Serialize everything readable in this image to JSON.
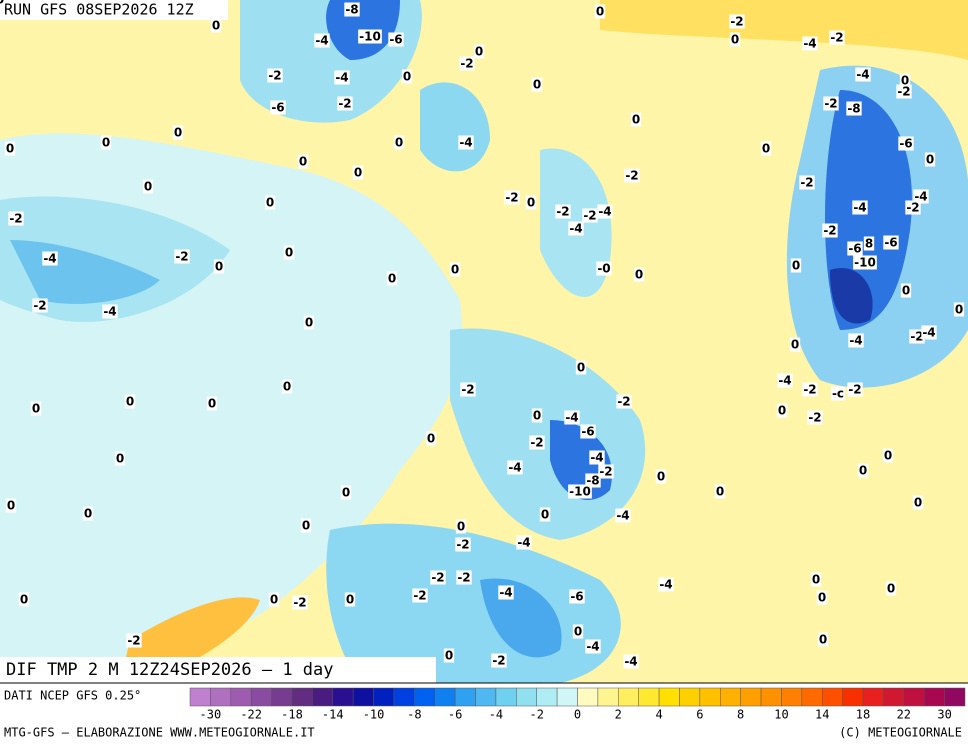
{
  "header": {
    "run": "RUN GFS 08SEP2026 12Z",
    "field": "DIF TMP 2 M 12Z24SEP2026 — 1 day",
    "source": "DATI NCEP GFS 0.25°",
    "footer_left": "MTG-GFS — ELABORAZIONE WWW.METEOGIORNALE.IT",
    "footer_right": "(C) METEOGIORNALE"
  },
  "contour_labels": [
    "-8",
    "0",
    "-2",
    "0",
    "-4",
    "-10",
    "-6",
    "0",
    "-2",
    "-4",
    "-2",
    "0",
    "-4",
    "0",
    "-2",
    "0",
    "-4",
    "0",
    "-2",
    "-6",
    "-2",
    "-2",
    "-8",
    "0",
    "0",
    "0",
    "-4",
    "0",
    "-6",
    "0",
    "0",
    "0",
    "0",
    "0",
    "0",
    "-2",
    "-2",
    "0",
    "-2",
    "0",
    "-2",
    "-2",
    "-4",
    "-4",
    "-2",
    "-4",
    "-2",
    "-4",
    "-2",
    "-6",
    "-6",
    "8",
    "-4",
    "-2",
    "0",
    "0",
    "0",
    "-0",
    "0",
    "0",
    "-10",
    "0",
    "0",
    "-2",
    "-4",
    "0",
    "0",
    "-4",
    "-2",
    "-4",
    "0",
    "0",
    "-2",
    "-4",
    "-2",
    "-c",
    "-2",
    "0",
    "0",
    "0",
    "0",
    "-2",
    "0",
    "-2",
    "0",
    "-4",
    "-6",
    "0",
    "-2",
    "-4",
    "-2",
    "-4",
    "-8",
    "-10",
    "0",
    "0",
    "0",
    "0",
    "0",
    "0",
    "0",
    "0",
    "0",
    "0",
    "-4",
    "0",
    "0",
    "-2",
    "-4",
    "-2",
    "-2",
    "-4",
    "0",
    "0",
    "0",
    "0",
    "0",
    "0",
    "-2",
    "-4",
    "-6",
    "-2",
    "0",
    "-4",
    "-2",
    "0",
    "0",
    "-2",
    "-4",
    "0"
  ],
  "colorbar": {
    "colors": [
      "#c080d0",
      "#b070c0",
      "#9e5cb0",
      "#8a4ca0",
      "#763c90",
      "#622c80",
      "#4a1c80",
      "#2a1090",
      "#1010a0",
      "#0020c0",
      "#0040e0",
      "#0060f0",
      "#1080f0",
      "#30a0f0",
      "#50b8f0",
      "#70d0f0",
      "#90e0f0",
      "#b0ecf4",
      "#d0f6f8",
      "#fffac0",
      "#fff490",
      "#ffee60",
      "#ffe830",
      "#ffe000",
      "#ffd000",
      "#ffc000",
      "#ffb000",
      "#ffa000",
      "#ff9000",
      "#ff8000",
      "#ff6a00",
      "#ff5000",
      "#f83000",
      "#e82020",
      "#d01830",
      "#c01040",
      "#a80850",
      "#900860"
    ],
    "labels": [
      "-30",
      "-22",
      "-18",
      "-14",
      "-10",
      "-8",
      "-6",
      "-4",
      "-2",
      "0",
      "2",
      "4",
      "6",
      "8",
      "10",
      "14",
      "18",
      "22",
      "30"
    ]
  }
}
